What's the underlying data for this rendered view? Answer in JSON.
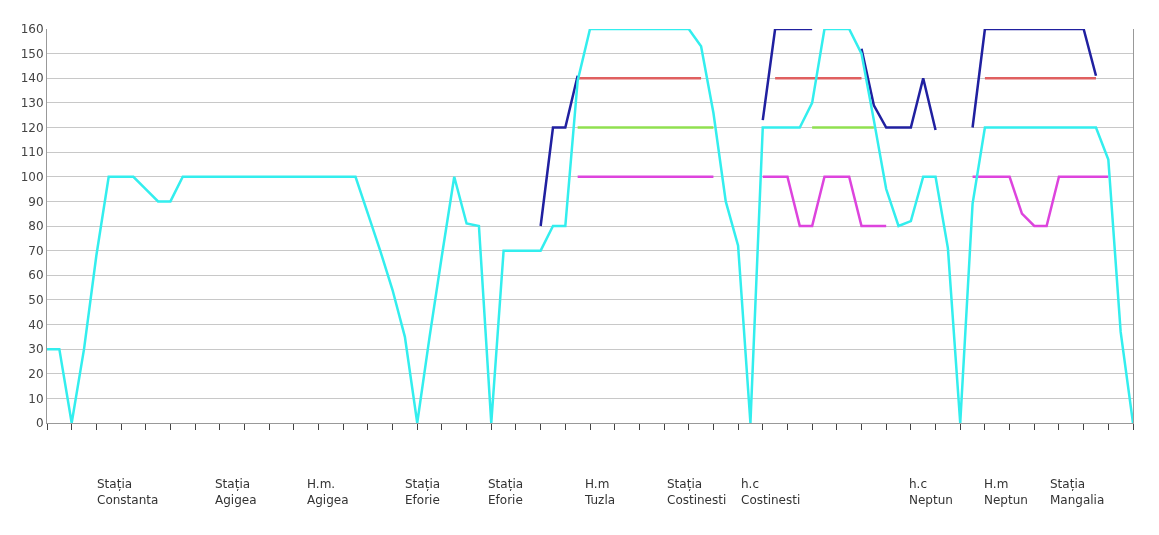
{
  "chart_data": {
    "type": "line",
    "categories": [
      null,
      null,
      null,
      null,
      null,
      null,
      null,
      null,
      null,
      null,
      null,
      null,
      null,
      null,
      null,
      null,
      null,
      null,
      null,
      null,
      null,
      null,
      null,
      null,
      null,
      null,
      null,
      null,
      null,
      null,
      null,
      null,
      null,
      null,
      null,
      null,
      null,
      null,
      null,
      null,
      null,
      null,
      null,
      null,
      null,
      null,
      null,
      null,
      null,
      null,
      null,
      null,
      null,
      null,
      null,
      null,
      null,
      null,
      null,
      null,
      null,
      null,
      null,
      null,
      null,
      null,
      null,
      null,
      null,
      null,
      null,
      null,
      null,
      null,
      null,
      null,
      null,
      null,
      null,
      null,
      null,
      null,
      null,
      null,
      null,
      null,
      null,
      null,
      null
    ],
    "ylim": [
      0,
      160
    ],
    "yticks": [
      0,
      10,
      20,
      30,
      40,
      50,
      60,
      70,
      80,
      90,
      100,
      110,
      120,
      130,
      140,
      150,
      160
    ],
    "grid": "y",
    "line_style": "solid",
    "series": [
      {
        "color": "#2020a0",
        "values": [
          null,
          null,
          null,
          null,
          null,
          null,
          null,
          null,
          null,
          null,
          null,
          null,
          null,
          null,
          null,
          null,
          null,
          null,
          null,
          null,
          null,
          null,
          null,
          null,
          null,
          null,
          null,
          null,
          null,
          null,
          null,
          null,
          null,
          null,
          null,
          null,
          null,
          null,
          null,
          null,
          80,
          120,
          120,
          141,
          null,
          null,
          null,
          null,
          null,
          null,
          null,
          null,
          null,
          null,
          null,
          null,
          null,
          null,
          123,
          160,
          160,
          160,
          160,
          null,
          null,
          null,
          152,
          129,
          120,
          120,
          120,
          140,
          119,
          null,
          null,
          120,
          160,
          160,
          160,
          160,
          160,
          160,
          160,
          160,
          160,
          141,
          null,
          null,
          null
        ]
      },
      {
        "color": "#e06060",
        "values": [
          null,
          null,
          null,
          null,
          null,
          null,
          null,
          null,
          null,
          null,
          null,
          null,
          null,
          null,
          null,
          null,
          null,
          null,
          null,
          null,
          null,
          null,
          null,
          null,
          null,
          null,
          null,
          null,
          null,
          null,
          null,
          null,
          null,
          null,
          null,
          null,
          null,
          null,
          null,
          null,
          null,
          null,
          null,
          140,
          140,
          140,
          140,
          140,
          140,
          140,
          140,
          140,
          140,
          140,
          null,
          null,
          null,
          null,
          null,
          140,
          140,
          140,
          140,
          140,
          140,
          140,
          140,
          null,
          null,
          null,
          null,
          null,
          null,
          null,
          null,
          null,
          140,
          140,
          140,
          140,
          140,
          140,
          140,
          140,
          140,
          140,
          null,
          null,
          null
        ]
      },
      {
        "color": "#90e050",
        "values": [
          null,
          null,
          null,
          null,
          null,
          null,
          null,
          null,
          null,
          null,
          null,
          null,
          null,
          null,
          null,
          null,
          null,
          null,
          null,
          null,
          null,
          null,
          null,
          null,
          null,
          null,
          null,
          null,
          null,
          null,
          null,
          null,
          null,
          null,
          null,
          null,
          null,
          null,
          null,
          null,
          null,
          null,
          null,
          120,
          120,
          120,
          120,
          120,
          120,
          120,
          120,
          120,
          120,
          120,
          120,
          null,
          null,
          null,
          null,
          null,
          null,
          null,
          120,
          120,
          120,
          120,
          120,
          120,
          null,
          null,
          null,
          null,
          null,
          null,
          null,
          null,
          null,
          null,
          null,
          null,
          null,
          null,
          null,
          null,
          null,
          null,
          null,
          null,
          null
        ]
      },
      {
        "color": "#dd44dd",
        "values": [
          null,
          null,
          null,
          null,
          null,
          null,
          null,
          null,
          null,
          null,
          null,
          null,
          null,
          null,
          null,
          null,
          null,
          null,
          null,
          null,
          null,
          null,
          null,
          null,
          null,
          null,
          null,
          null,
          null,
          null,
          null,
          null,
          null,
          null,
          null,
          null,
          null,
          null,
          null,
          null,
          null,
          null,
          null,
          100,
          100,
          100,
          100,
          100,
          100,
          100,
          100,
          100,
          100,
          100,
          100,
          null,
          null,
          null,
          100,
          100,
          100,
          80,
          80,
          100,
          100,
          100,
          80,
          80,
          80,
          null,
          null,
          null,
          null,
          null,
          null,
          100,
          100,
          100,
          100,
          85,
          80,
          80,
          100,
          100,
          100,
          100,
          100,
          null,
          null
        ]
      },
      {
        "color": "#33eeee",
        "values": [
          30,
          30,
          0,
          30,
          68,
          100,
          100,
          100,
          95,
          90,
          90,
          100,
          100,
          100,
          100,
          100,
          100,
          100,
          100,
          100,
          100,
          100,
          100,
          100,
          100,
          100,
          85,
          70,
          54,
          35,
          0,
          35,
          68,
          100,
          81,
          80,
          0,
          70,
          70,
          70,
          70,
          80,
          80,
          139,
          160,
          160,
          160,
          160,
          160,
          160,
          160,
          160,
          160,
          153,
          126,
          90,
          72,
          0,
          120,
          120,
          120,
          120,
          130,
          160,
          160,
          160,
          150,
          123,
          95,
          80,
          82,
          100,
          100,
          71,
          0,
          89,
          120,
          120,
          120,
          120,
          120,
          120,
          120,
          120,
          120,
          120,
          107,
          37,
          0
        ]
      }
    ],
    "annotations": [
      "Stația\nConstanta",
      "Stația\nAgigea",
      "H.m.\nAgigea",
      "Stația\nEforie",
      "Stația\nEforie",
      "H.m\nTuzla",
      "Stația\nCostinesti",
      "h.c\nCostinesti",
      "h.c\nNeptun",
      "H.m\nNeptun",
      "Stația\nMangalia"
    ]
  }
}
